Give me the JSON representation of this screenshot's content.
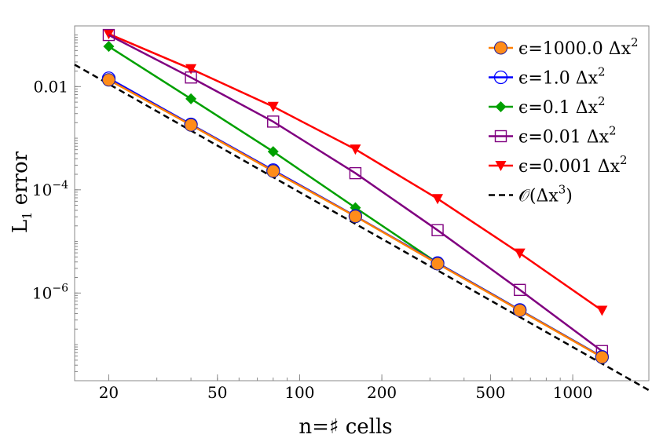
{
  "chart_data": {
    "type": "line",
    "scale": {
      "x": "log",
      "y": "log"
    },
    "xlabel": "n=♯ cells",
    "ylabel": {
      "main": "L",
      "sub": "1",
      "rest": " error"
    },
    "xlim": [
      15,
      1900
    ],
    "ylim": [
      2e-08,
      0.15
    ],
    "x_ticks": [
      {
        "value": 20,
        "label": "20"
      },
      {
        "value": 50,
        "label": "50"
      },
      {
        "value": 100,
        "label": "100"
      },
      {
        "value": 200,
        "label": "200"
      },
      {
        "value": 500,
        "label": "500"
      },
      {
        "value": 1000,
        "label": "1000"
      }
    ],
    "y_ticks": [
      {
        "value": 0.01,
        "base": "0.01",
        "exp": ""
      },
      {
        "value": 0.0001,
        "base": "10",
        "exp": "−4"
      },
      {
        "value": 1e-06,
        "base": "10",
        "exp": "−6"
      }
    ],
    "x": [
      20,
      40,
      80,
      160,
      320,
      640,
      1280
    ],
    "series": [
      {
        "name": "ϵ=1000.0 Δx²",
        "label_main": "ϵ=1000.0 Δx",
        "label_sup": "2",
        "color": "#ff7f00",
        "marker": "circle-filled",
        "marker_color": "#ff8c1a",
        "values": [
          0.0135,
          0.0018,
          0.00023,
          3.05e-05,
          3.7e-06,
          4.6e-07,
          5.7e-08
        ]
      },
      {
        "name": "ϵ=1.0 Δx²",
        "label_main": "ϵ=1.0 Δx",
        "label_sup": "2",
        "color": "#0000ff",
        "marker": "circle-open",
        "values": [
          0.0145,
          0.00185,
          0.00024,
          3.1e-05,
          3.8e-06,
          4.7e-07,
          5.8e-08
        ]
      },
      {
        "name": "ϵ=0.1 Δx²",
        "label_main": "ϵ=0.1 Δx",
        "label_sup": "2",
        "color": "#00a000",
        "marker": "diamond-filled",
        "values": [
          0.06,
          0.0058,
          0.00055,
          4.5e-05,
          3.8e-06,
          4.7e-07,
          5.8e-08
        ]
      },
      {
        "name": "ϵ=0.01 Δx²",
        "label_main": "ϵ=0.01 Δx",
        "label_sup": "2",
        "color": "#800080",
        "marker": "square-open",
        "values": [
          0.1,
          0.015,
          0.0021,
          0.00021,
          1.65e-05,
          1.15e-06,
          7.5e-08
        ]
      },
      {
        "name": "ϵ=0.001 Δx²",
        "label_main": "ϵ=0.001 Δx",
        "label_sup": "2",
        "color": "#ff0000",
        "marker": "triangle-down-filled",
        "values": [
          0.105,
          0.022,
          0.0041,
          0.00061,
          6.7e-05,
          5.9e-06,
          4.6e-07
        ]
      }
    ],
    "reference": {
      "name": "𝒪(Δx³)",
      "label_main": "𝒪(Δx",
      "label_sup": "3",
      "label_end": ")",
      "color": "#000000",
      "style": "dashed",
      "x": [
        15,
        1900
      ],
      "values": [
        0.0266,
        1.31e-08
      ]
    },
    "legend_position": "top-right"
  }
}
